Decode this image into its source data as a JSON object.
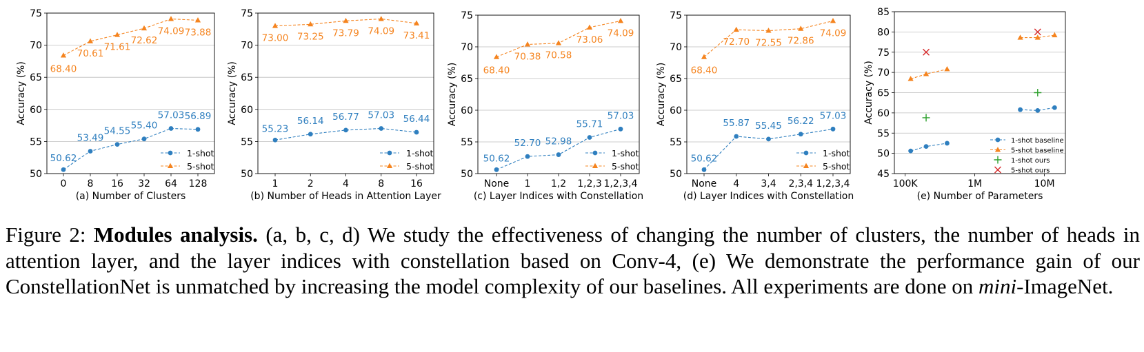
{
  "colors": {
    "one_shot": "#2f7fbf",
    "five_shot": "#f5841f",
    "ours_1shot": "#2ca02c",
    "ours_5shot": "#d62728",
    "grid": "#bdbdbd"
  },
  "chart_data": [
    {
      "type": "line",
      "xlabel": "(a) Number of Clusters",
      "ylabel": "Accuracy (%)",
      "categories": [
        "0",
        "8",
        "16",
        "32",
        "64",
        "128"
      ],
      "ylim": [
        50,
        75
      ],
      "yticks": [
        50,
        55,
        60,
        65,
        70,
        75
      ],
      "grid": "horizontal",
      "legend": "bottom-right",
      "series": [
        {
          "name": "1-shot",
          "values": [
            50.62,
            53.49,
            54.55,
            55.4,
            57.03,
            56.89
          ],
          "labels": [
            "50.62",
            "53.49",
            "54.55",
            "55.40",
            "57.03",
            "56.89"
          ]
        },
        {
          "name": "5-shot",
          "values": [
            68.4,
            70.61,
            71.61,
            72.62,
            74.09,
            73.88
          ],
          "labels": [
            "68.40",
            "70.61",
            "71.61",
            "72.62",
            "74.09",
            "73.88"
          ]
        }
      ]
    },
    {
      "type": "line",
      "xlabel": "(b) Number of Heads in Attention Layer",
      "ylabel": "Accuracy (%)",
      "categories": [
        "1",
        "2",
        "4",
        "8",
        "16"
      ],
      "ylim": [
        50,
        75
      ],
      "yticks": [
        50,
        55,
        60,
        65,
        70,
        75
      ],
      "grid": "horizontal",
      "legend": "bottom-right",
      "series": [
        {
          "name": "1-shot",
          "values": [
            55.23,
            56.14,
            56.77,
            57.03,
            56.44
          ],
          "labels": [
            "55.23",
            "56.14",
            "56.77",
            "57.03",
            "56.44"
          ]
        },
        {
          "name": "5-shot",
          "values": [
            73.0,
            73.25,
            73.79,
            74.09,
            73.41
          ],
          "labels": [
            "73.00",
            "73.25",
            "73.79",
            "74.09",
            "73.41"
          ]
        }
      ]
    },
    {
      "type": "line",
      "xlabel": "(c) Layer Indices with Constellation",
      "ylabel": "Accuracy (%)",
      "categories": [
        "None",
        "1",
        "1,2",
        "1,2,3",
        "1,2,3,4"
      ],
      "ylim": [
        50,
        75
      ],
      "yticks": [
        50,
        55,
        60,
        65,
        70,
        75
      ],
      "grid": "horizontal",
      "legend": "bottom-right",
      "series": [
        {
          "name": "1-shot",
          "values": [
            50.62,
            52.7,
            52.98,
            55.71,
            57.03
          ],
          "labels": [
            "50.62",
            "52.70",
            "52.98",
            "55.71",
            "57.03"
          ]
        },
        {
          "name": "5-shot",
          "values": [
            68.4,
            70.38,
            70.58,
            73.06,
            74.09
          ],
          "labels": [
            "68.40",
            "70.38",
            "70.58",
            "73.06",
            "74.09"
          ]
        }
      ]
    },
    {
      "type": "line",
      "xlabel": "(d) Layer Indices with Constellation",
      "ylabel": "Accuracy (%)",
      "categories": [
        "None",
        "4",
        "3,4",
        "2,3,4",
        "1,2,3,4"
      ],
      "ylim": [
        50,
        75
      ],
      "yticks": [
        50,
        55,
        60,
        65,
        70,
        75
      ],
      "grid": "horizontal",
      "legend": "bottom-right",
      "series": [
        {
          "name": "1-shot",
          "values": [
            50.62,
            55.87,
            55.45,
            56.22,
            57.03
          ],
          "labels": [
            "50.62",
            "55.87",
            "55.45",
            "56.22",
            "57.03"
          ]
        },
        {
          "name": "5-shot",
          "values": [
            68.4,
            72.7,
            72.55,
            72.86,
            74.09
          ],
          "labels": [
            "68.40",
            "72.70",
            "72.55",
            "72.86",
            "74.09"
          ]
        }
      ]
    },
    {
      "type": "scatter",
      "xlabel": "(e) Number of Parameters",
      "ylabel": "Accuracy (%)",
      "xscale": "log",
      "xlim": [
        70000,
        20000000
      ],
      "xticks": [
        {
          "value": 100000,
          "label": "100K"
        },
        {
          "value": 1000000,
          "label": "1M"
        },
        {
          "value": 10000000,
          "label": "10M"
        }
      ],
      "ylim": [
        45,
        85
      ],
      "yticks": [
        45,
        50,
        55,
        60,
        65,
        70,
        75,
        80,
        85
      ],
      "grid": "horizontal",
      "legend": "bottom-right",
      "series": [
        {
          "name": "1-shot baseline",
          "marker": "circle",
          "dashed": true,
          "groups": [
            [
              [
                120000,
                50.6
              ],
              [
                200000,
                51.7
              ],
              [
                400000,
                52.5
              ]
            ],
            [
              [
                4500000,
                60.8
              ],
              [
                8000000,
                60.6
              ],
              [
                14000000,
                61.3
              ]
            ]
          ]
        },
        {
          "name": "5-shot baseline",
          "marker": "triangle",
          "dashed": true,
          "groups": [
            [
              [
                120000,
                68.4
              ],
              [
                200000,
                69.6
              ],
              [
                400000,
                70.8
              ]
            ],
            [
              [
                4500000,
                78.6
              ],
              [
                8000000,
                78.6
              ],
              [
                14000000,
                79.2
              ]
            ]
          ]
        },
        {
          "name": "1-shot ours",
          "marker": "plus",
          "points": [
            [
              200000,
              58.8
            ],
            [
              8000000,
              65.0
            ]
          ]
        },
        {
          "name": "5-shot ours",
          "marker": "x",
          "points": [
            [
              200000,
              75.0
            ],
            [
              8000000,
              80.0
            ]
          ]
        }
      ]
    }
  ],
  "caption": {
    "label": "Figure 2:",
    "bold": "Modules analysis.",
    "text1": "(a, b, c, d) We study the effectiveness of changing the number of clusters, the number of heads in attention layer, and the layer indices with constellation based on Conv-4, (e) We demonstrate the performance gain of our ConstellationNet is unmatched by increasing the model complexity of our baselines. All experiments are done on",
    "italic": "mini",
    "text2": "-ImageNet."
  }
}
